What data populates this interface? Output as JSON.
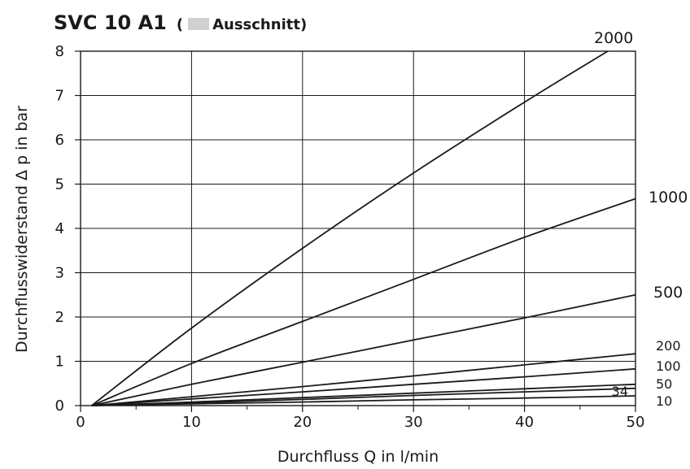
{
  "title": {
    "main": "SVC 10 A1",
    "open_paren": "(",
    "note": "Ausschnitt)",
    "swatch_color": "#d0d0d0"
  },
  "chart_data": {
    "type": "line",
    "title": "SVC 10 A1",
    "subtitle": "( Ausschnitt)",
    "xlabel": "Durchfluss Q in l/min",
    "ylabel": "Durchflusswiderstand Δ p in bar",
    "xlim": [
      0,
      50
    ],
    "ylim": [
      0,
      8
    ],
    "x_ticks": [
      0,
      10,
      20,
      30,
      40,
      50
    ],
    "x_minor_ticks": [
      5,
      15,
      25,
      35,
      45
    ],
    "y_ticks": [
      0,
      1,
      2,
      3,
      4,
      5,
      6,
      7,
      8
    ],
    "grid": true,
    "line_color": "#1a1a1a",
    "series": [
      {
        "name": "2000",
        "points": [
          [
            1,
            0
          ],
          [
            10,
            1.75
          ],
          [
            20,
            3.55
          ],
          [
            30,
            5.25
          ],
          [
            40,
            6.85
          ],
          [
            47.5,
            8.0
          ]
        ]
      },
      {
        "name": "1000",
        "points": [
          [
            1,
            0
          ],
          [
            10,
            0.95
          ],
          [
            20,
            1.9
          ],
          [
            30,
            2.85
          ],
          [
            40,
            3.8
          ],
          [
            50,
            4.67
          ]
        ]
      },
      {
        "name": "500",
        "points": [
          [
            1,
            0
          ],
          [
            10,
            0.48
          ],
          [
            20,
            0.98
          ],
          [
            30,
            1.48
          ],
          [
            40,
            1.98
          ],
          [
            50,
            2.5
          ]
        ]
      },
      {
        "name": "200",
        "points": [
          [
            1,
            0
          ],
          [
            10,
            0.2
          ],
          [
            20,
            0.43
          ],
          [
            30,
            0.67
          ],
          [
            40,
            0.92
          ],
          [
            50,
            1.17
          ]
        ]
      },
      {
        "name": "100",
        "points": [
          [
            1,
            0
          ],
          [
            10,
            0.15
          ],
          [
            20,
            0.31
          ],
          [
            30,
            0.48
          ],
          [
            40,
            0.65
          ],
          [
            50,
            0.83
          ]
        ]
      },
      {
        "name": "50",
        "points": [
          [
            1,
            0
          ],
          [
            10,
            0.08
          ],
          [
            20,
            0.18
          ],
          [
            30,
            0.28
          ],
          [
            40,
            0.38
          ],
          [
            50,
            0.48
          ]
        ]
      },
      {
        "name": "34",
        "points": [
          [
            1,
            0
          ],
          [
            10,
            0.06
          ],
          [
            20,
            0.14
          ],
          [
            30,
            0.23
          ],
          [
            40,
            0.31
          ],
          [
            50,
            0.39
          ]
        ]
      },
      {
        "name": "10",
        "points": [
          [
            1,
            0
          ],
          [
            10,
            0.04
          ],
          [
            20,
            0.08
          ],
          [
            30,
            0.13
          ],
          [
            40,
            0.17
          ],
          [
            50,
            0.22
          ]
        ]
      }
    ]
  }
}
